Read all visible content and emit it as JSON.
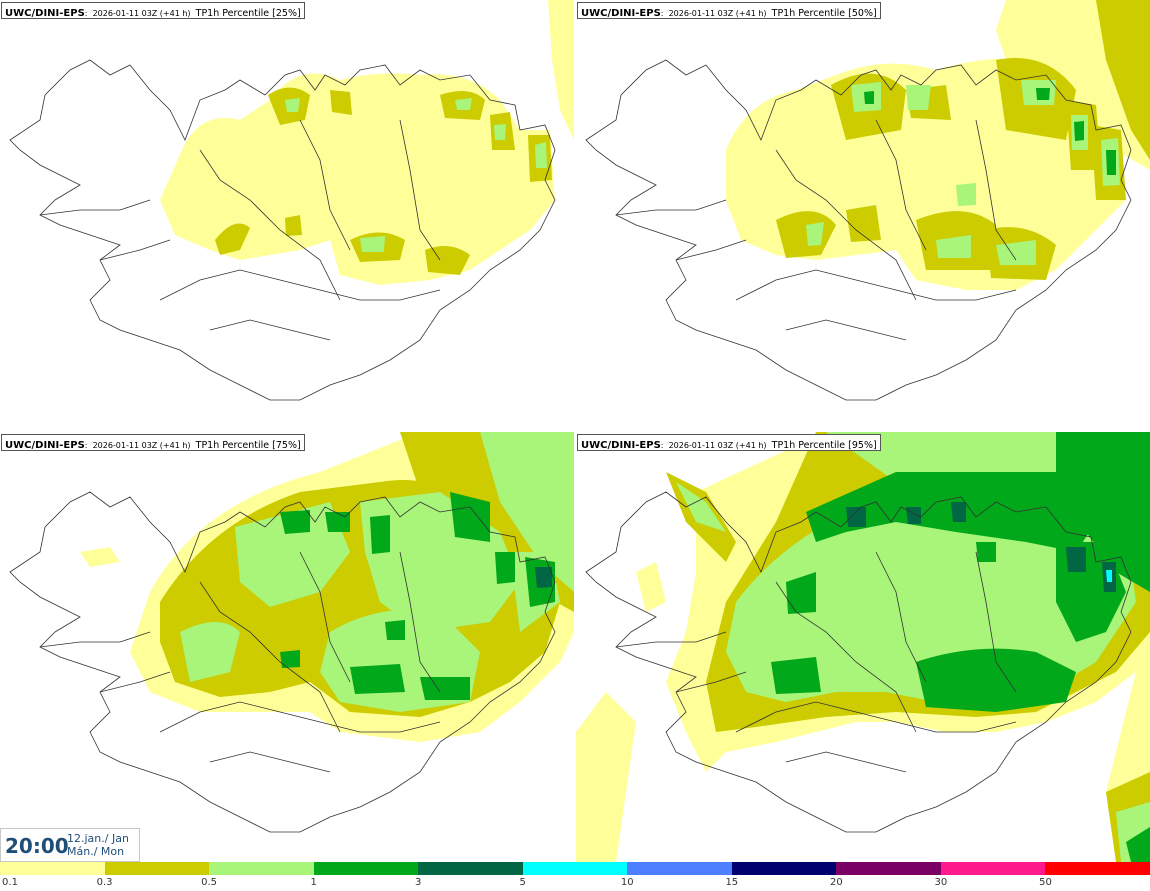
{
  "panels": [
    {
      "model": "UWC/DINI-EPS",
      "run": "2026-01-11 03Z (+41 h)",
      "field": "TP1h Percentile [25%]"
    },
    {
      "model": "UWC/DINI-EPS",
      "run": "2026-01-11 03Z (+41 h)",
      "field": "TP1h Percentile [50%]"
    },
    {
      "model": "UWC/DINI-EPS",
      "run": "2026-01-11 03Z (+41 h)",
      "field": "TP1h Percentile [75%]"
    },
    {
      "model": "UWC/DINI-EPS",
      "run": "2026-01-11 03Z (+41 h)",
      "field": "TP1h Percentile [95%]"
    }
  ],
  "model_suffix": ":",
  "time": {
    "hour": "20:00",
    "date_line1": "12.jan./ Jan",
    "date_line2": "Mán./ Mon"
  },
  "legend": {
    "labels": [
      "0.1",
      "0.3",
      "0.5",
      "1",
      "3",
      "5",
      "10",
      "15",
      "20",
      "30",
      "50"
    ],
    "colors": [
      "#ffff99",
      "#cccc00",
      "#a8f57a",
      "#00a81a",
      "#006644",
      "#00ffff",
      "#4d7fff",
      "#00006e",
      "#7a0066",
      "#ff1a8c",
      "#ff0000"
    ]
  }
}
